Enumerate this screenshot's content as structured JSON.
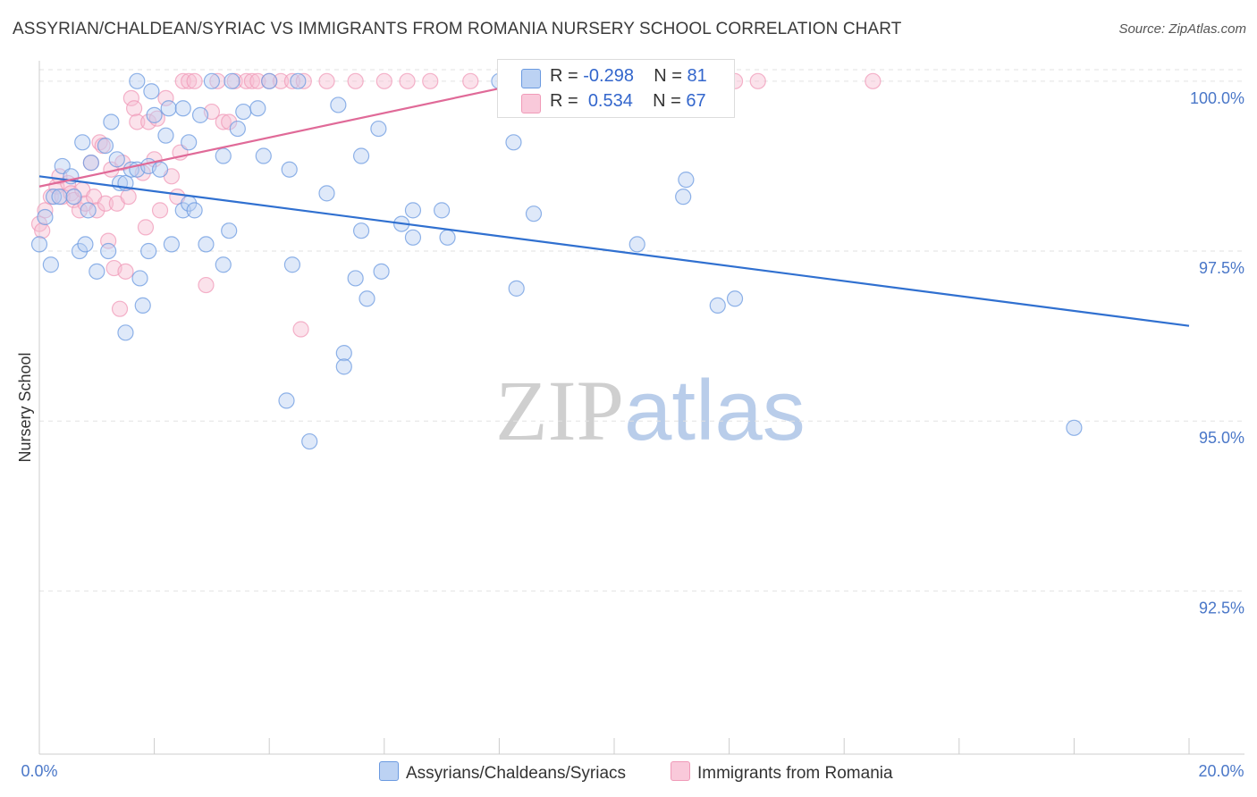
{
  "title": "ASSYRIAN/CHALDEAN/SYRIAC VS IMMIGRANTS FROM ROMANIA NURSERY SCHOOL CORRELATION CHART",
  "source": "Source: ZipAtlas.com",
  "watermark": {
    "zip": "ZIP",
    "atlas": "atlas"
  },
  "legend": {
    "row1": {
      "r_label": "R =",
      "r_value": "-0.298",
      "n_label": "N =",
      "n_value": "81"
    },
    "row2": {
      "r_label": "R =",
      "r_value": "0.534",
      "n_label": "N =",
      "n_value": "67"
    }
  },
  "bottom_legend": {
    "series1": "Assyrians/Chaldeans/Syriacs",
    "series2": "Immigrants from Romania"
  },
  "chart_data": {
    "type": "scatter",
    "title": "ASSYRIAN/CHALDEAN/SYRIAC VS IMMIGRANTS FROM ROMANIA NURSERY SCHOOL CORRELATION CHART",
    "xlabel": "",
    "ylabel": "Nursery School",
    "xlim": [
      0,
      20
    ],
    "ylim": [
      90.1,
      100.3
    ],
    "x_tick_labels": [
      "0.0%",
      "20.0%"
    ],
    "y_ticks": [
      92.5,
      95.0,
      97.5,
      100.0
    ],
    "y_tick_labels": [
      "92.5%",
      "95.0%",
      "97.5%",
      "100.0%"
    ],
    "grid": true,
    "legend_position": "top-center",
    "colors": {
      "blue": "#6b9ae0",
      "pink": "#f09ab8",
      "blue_line": "#3070d0",
      "pink_line": "#e06a98"
    },
    "series": [
      {
        "name": "Assyrians/Chaldeans/Syriacs",
        "color": "#6b9ae0",
        "trend": {
          "x": [
            0,
            20
          ],
          "y": [
            98.6,
            96.4
          ]
        },
        "points": [
          [
            0.0,
            97.6
          ],
          [
            0.1,
            98.0
          ],
          [
            0.2,
            97.3
          ],
          [
            0.25,
            98.3
          ],
          [
            0.35,
            98.3
          ],
          [
            0.4,
            98.75
          ],
          [
            0.55,
            98.6
          ],
          [
            0.6,
            98.3
          ],
          [
            0.7,
            97.5
          ],
          [
            0.75,
            99.1
          ],
          [
            0.8,
            97.6
          ],
          [
            0.85,
            98.1
          ],
          [
            0.9,
            98.8
          ],
          [
            1.0,
            97.2
          ],
          [
            1.15,
            99.05
          ],
          [
            1.2,
            97.5
          ],
          [
            1.25,
            99.4
          ],
          [
            1.35,
            98.85
          ],
          [
            1.4,
            98.5
          ],
          [
            1.5,
            96.3
          ],
          [
            1.5,
            98.5
          ],
          [
            1.6,
            98.7
          ],
          [
            1.7,
            100.0
          ],
          [
            1.7,
            98.7
          ],
          [
            1.75,
            97.1
          ],
          [
            1.8,
            96.7
          ],
          [
            1.9,
            98.75
          ],
          [
            1.9,
            97.5
          ],
          [
            1.95,
            99.85
          ],
          [
            2.0,
            99.5
          ],
          [
            2.1,
            98.7
          ],
          [
            2.2,
            99.2
          ],
          [
            2.25,
            99.6
          ],
          [
            2.3,
            97.6
          ],
          [
            2.5,
            99.6
          ],
          [
            2.5,
            98.1
          ],
          [
            2.6,
            98.2
          ],
          [
            2.6,
            99.1
          ],
          [
            2.7,
            98.1
          ],
          [
            2.8,
            99.5
          ],
          [
            2.9,
            97.6
          ],
          [
            3.0,
            100.0
          ],
          [
            3.2,
            98.9
          ],
          [
            3.2,
            97.3
          ],
          [
            3.3,
            97.8
          ],
          [
            3.35,
            100.0
          ],
          [
            3.45,
            99.3
          ],
          [
            3.55,
            99.55
          ],
          [
            3.8,
            99.6
          ],
          [
            3.9,
            98.9
          ],
          [
            4.0,
            100.0
          ],
          [
            4.3,
            95.3
          ],
          [
            4.35,
            98.7
          ],
          [
            4.4,
            97.3
          ],
          [
            4.5,
            100.0
          ],
          [
            4.7,
            94.7
          ],
          [
            5.0,
            98.35
          ],
          [
            5.2,
            99.65
          ],
          [
            5.3,
            96.0
          ],
          [
            5.3,
            95.8
          ],
          [
            5.5,
            97.1
          ],
          [
            5.6,
            97.8
          ],
          [
            5.6,
            98.9
          ],
          [
            5.7,
            96.8
          ],
          [
            5.9,
            99.3
          ],
          [
            5.95,
            97.2
          ],
          [
            6.3,
            97.9
          ],
          [
            6.5,
            98.1
          ],
          [
            6.5,
            97.7
          ],
          [
            7.0,
            98.1
          ],
          [
            7.1,
            97.7
          ],
          [
            8.0,
            100.0
          ],
          [
            8.25,
            99.1
          ],
          [
            8.3,
            96.95
          ],
          [
            8.6,
            98.05
          ],
          [
            10.4,
            97.6
          ],
          [
            11.2,
            98.3
          ],
          [
            11.25,
            98.55
          ],
          [
            11.8,
            96.7
          ],
          [
            12.1,
            96.8
          ],
          [
            18.0,
            94.9
          ]
        ]
      },
      {
        "name": "Immigrants from Romania",
        "color": "#f09ab8",
        "trend": {
          "x": [
            0,
            8.6
          ],
          "y": [
            98.45,
            100.0
          ]
        },
        "points": [
          [
            0.0,
            97.9
          ],
          [
            0.05,
            97.8
          ],
          [
            0.1,
            98.1
          ],
          [
            0.2,
            98.3
          ],
          [
            0.3,
            98.45
          ],
          [
            0.35,
            98.6
          ],
          [
            0.4,
            98.3
          ],
          [
            0.5,
            98.5
          ],
          [
            0.55,
            98.35
          ],
          [
            0.6,
            98.25
          ],
          [
            0.7,
            98.1
          ],
          [
            0.75,
            98.4
          ],
          [
            0.8,
            98.2
          ],
          [
            0.9,
            98.8
          ],
          [
            0.95,
            98.3
          ],
          [
            1.0,
            98.1
          ],
          [
            1.05,
            99.1
          ],
          [
            1.1,
            99.05
          ],
          [
            1.15,
            98.2
          ],
          [
            1.2,
            97.65
          ],
          [
            1.25,
            98.7
          ],
          [
            1.3,
            97.25
          ],
          [
            1.35,
            98.2
          ],
          [
            1.4,
            96.65
          ],
          [
            1.45,
            98.8
          ],
          [
            1.5,
            97.2
          ],
          [
            1.55,
            98.3
          ],
          [
            1.6,
            99.75
          ],
          [
            1.65,
            99.6
          ],
          [
            1.7,
            99.4
          ],
          [
            1.8,
            98.65
          ],
          [
            1.85,
            97.85
          ],
          [
            1.9,
            99.4
          ],
          [
            2.0,
            98.85
          ],
          [
            2.05,
            99.45
          ],
          [
            2.1,
            98.1
          ],
          [
            2.2,
            99.75
          ],
          [
            2.3,
            98.6
          ],
          [
            2.4,
            98.3
          ],
          [
            2.45,
            98.95
          ],
          [
            2.5,
            100.0
          ],
          [
            2.6,
            100.0
          ],
          [
            2.7,
            100.0
          ],
          [
            2.9,
            97.0
          ],
          [
            3.0,
            99.55
          ],
          [
            3.1,
            100.0
          ],
          [
            3.2,
            99.4
          ],
          [
            3.3,
            99.4
          ],
          [
            3.4,
            100.0
          ],
          [
            3.6,
            100.0
          ],
          [
            3.7,
            100.0
          ],
          [
            3.8,
            100.0
          ],
          [
            4.0,
            100.0
          ],
          [
            4.2,
            100.0
          ],
          [
            4.4,
            100.0
          ],
          [
            4.55,
            96.35
          ],
          [
            4.6,
            100.0
          ],
          [
            5.0,
            100.0
          ],
          [
            5.5,
            100.0
          ],
          [
            6.0,
            100.0
          ],
          [
            6.4,
            100.0
          ],
          [
            6.8,
            100.0
          ],
          [
            7.5,
            100.0
          ],
          [
            11.0,
            100.0
          ],
          [
            12.1,
            100.0
          ],
          [
            12.5,
            100.0
          ],
          [
            14.5,
            100.0
          ]
        ]
      }
    ]
  }
}
